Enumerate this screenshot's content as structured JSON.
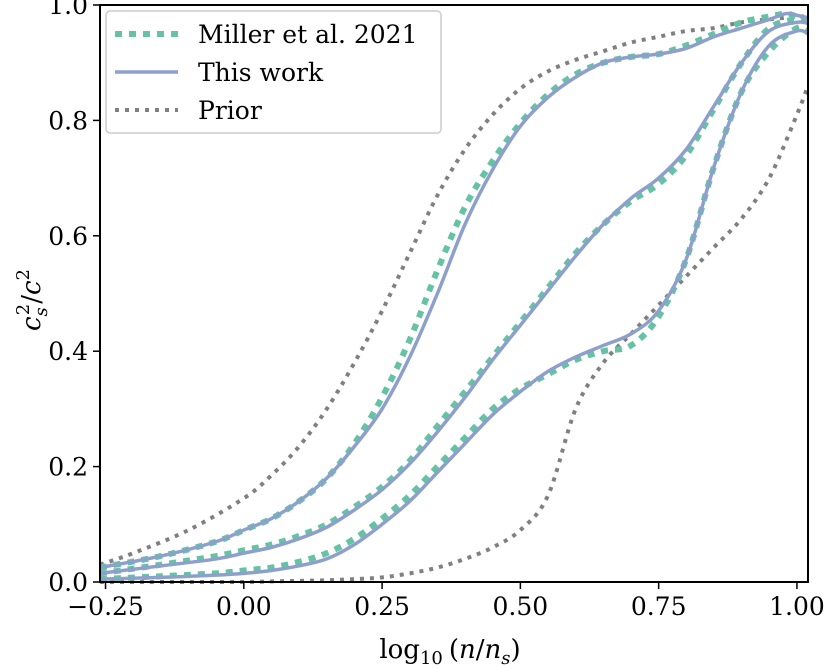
{
  "chart_data": {
    "type": "line",
    "title": "",
    "xlabel": "log10(n/ns)",
    "xlabel_parts": {
      "fn": "log",
      "sub": "10",
      "open": "(",
      "num": "n",
      "slash": "/",
      "den": "n",
      "den_sub": "s",
      "close": ")"
    },
    "ylabel": "cs^2/c^2",
    "ylabel_parts": {
      "a": "c",
      "a_sub": "s",
      "a_sup": "2",
      "slash": "/",
      "b": "c",
      "b_sup": "2"
    },
    "xlim": [
      -0.26,
      1.02
    ],
    "ylim": [
      0.0,
      1.0
    ],
    "x_ticks": [
      -0.25,
      0.0,
      0.25,
      0.5,
      0.75,
      1.0
    ],
    "x_tick_labels": [
      "−0.25",
      "0.00",
      "0.25",
      "0.50",
      "0.75",
      "1.00"
    ],
    "y_ticks": [
      0.0,
      0.2,
      0.4,
      0.6,
      0.8,
      1.0
    ],
    "y_tick_labels": [
      "0.0",
      "0.2",
      "0.4",
      "0.6",
      "0.8",
      "1.0"
    ],
    "legend": {
      "location": "top-left",
      "entries": [
        {
          "label": "Miller et al. 2021",
          "style": "dotted-thick",
          "color": "#66c2a5"
        },
        {
          "label": "This work",
          "style": "solid",
          "color": "#8da0cb"
        },
        {
          "label": "Prior",
          "style": "dotted",
          "color": "#808080"
        }
      ]
    },
    "colors": {
      "miller": "#66c2a5",
      "this_work": "#8da0cb",
      "prior": "#808080"
    },
    "series": [
      {
        "name": "Miller et al. 2021 (upper)",
        "style": "miller",
        "x": [
          -0.26,
          -0.15,
          -0.05,
          0.0,
          0.05,
          0.1,
          0.15,
          0.2,
          0.25,
          0.3,
          0.35,
          0.4,
          0.45,
          0.5,
          0.55,
          0.6,
          0.65,
          0.7,
          0.75,
          0.8,
          0.85,
          0.9,
          0.95,
          0.98,
          1.0,
          1.02
        ],
        "y": [
          0.025,
          0.045,
          0.07,
          0.09,
          0.11,
          0.14,
          0.18,
          0.24,
          0.32,
          0.42,
          0.54,
          0.65,
          0.73,
          0.795,
          0.845,
          0.88,
          0.9,
          0.91,
          0.915,
          0.93,
          0.95,
          0.97,
          0.98,
          0.985,
          0.98,
          0.975
        ]
      },
      {
        "name": "This work (upper)",
        "style": "this_work",
        "x": [
          -0.26,
          -0.15,
          -0.05,
          0.0,
          0.05,
          0.1,
          0.15,
          0.2,
          0.25,
          0.3,
          0.35,
          0.4,
          0.45,
          0.5,
          0.55,
          0.6,
          0.65,
          0.7,
          0.75,
          0.8,
          0.85,
          0.9,
          0.95,
          0.98,
          1.0,
          1.02
        ],
        "y": [
          0.025,
          0.045,
          0.07,
          0.09,
          0.11,
          0.14,
          0.18,
          0.235,
          0.3,
          0.39,
          0.5,
          0.62,
          0.715,
          0.79,
          0.84,
          0.875,
          0.9,
          0.91,
          0.915,
          0.925,
          0.945,
          0.96,
          0.975,
          0.985,
          0.982,
          0.978
        ]
      },
      {
        "name": "Miller et al. 2021 (middle)",
        "style": "miller",
        "x": [
          -0.26,
          -0.15,
          -0.05,
          0.0,
          0.05,
          0.1,
          0.15,
          0.2,
          0.25,
          0.3,
          0.35,
          0.4,
          0.45,
          0.5,
          0.55,
          0.6,
          0.65,
          0.7,
          0.75,
          0.8,
          0.85,
          0.9,
          0.95,
          1.0,
          1.02
        ],
        "y": [
          0.015,
          0.03,
          0.045,
          0.055,
          0.065,
          0.08,
          0.1,
          0.13,
          0.165,
          0.21,
          0.27,
          0.33,
          0.39,
          0.45,
          0.51,
          0.57,
          0.62,
          0.66,
          0.69,
          0.74,
          0.82,
          0.9,
          0.96,
          0.975,
          0.97
        ]
      },
      {
        "name": "This work (middle)",
        "style": "this_work",
        "x": [
          -0.26,
          -0.15,
          -0.05,
          0.0,
          0.05,
          0.1,
          0.15,
          0.2,
          0.25,
          0.3,
          0.35,
          0.4,
          0.45,
          0.5,
          0.55,
          0.6,
          0.65,
          0.7,
          0.75,
          0.8,
          0.85,
          0.9,
          0.95,
          1.0,
          1.02
        ],
        "y": [
          0.015,
          0.028,
          0.04,
          0.05,
          0.06,
          0.075,
          0.095,
          0.125,
          0.16,
          0.205,
          0.26,
          0.32,
          0.385,
          0.445,
          0.505,
          0.565,
          0.62,
          0.665,
          0.7,
          0.75,
          0.825,
          0.9,
          0.955,
          0.97,
          0.968
        ]
      },
      {
        "name": "Miller et al. 2021 (lower)",
        "style": "miller",
        "x": [
          -0.26,
          -0.15,
          -0.05,
          0.0,
          0.05,
          0.1,
          0.15,
          0.2,
          0.25,
          0.3,
          0.35,
          0.4,
          0.45,
          0.5,
          0.55,
          0.6,
          0.65,
          0.7,
          0.75,
          0.8,
          0.85,
          0.9,
          0.95,
          1.0,
          1.02
        ],
        "y": [
          0.005,
          0.01,
          0.015,
          0.02,
          0.025,
          0.035,
          0.05,
          0.075,
          0.11,
          0.15,
          0.2,
          0.25,
          0.3,
          0.335,
          0.36,
          0.385,
          0.4,
          0.41,
          0.46,
          0.56,
          0.72,
          0.85,
          0.92,
          0.96,
          0.955
        ]
      },
      {
        "name": "This work (lower)",
        "style": "this_work",
        "x": [
          -0.26,
          -0.15,
          -0.05,
          0.0,
          0.05,
          0.1,
          0.15,
          0.2,
          0.25,
          0.3,
          0.35,
          0.4,
          0.45,
          0.5,
          0.55,
          0.6,
          0.65,
          0.7,
          0.75,
          0.8,
          0.85,
          0.9,
          0.95,
          1.0,
          1.02
        ],
        "y": [
          0.005,
          0.008,
          0.012,
          0.015,
          0.02,
          0.028,
          0.04,
          0.065,
          0.1,
          0.14,
          0.19,
          0.24,
          0.29,
          0.33,
          0.365,
          0.39,
          0.41,
          0.43,
          0.47,
          0.56,
          0.72,
          0.85,
          0.93,
          0.955,
          0.95
        ]
      },
      {
        "name": "Prior (upper)",
        "style": "prior",
        "x": [
          -0.26,
          -0.2,
          -0.1,
          0.0,
          0.05,
          0.1,
          0.15,
          0.2,
          0.25,
          0.3,
          0.35,
          0.4,
          0.45,
          0.5,
          0.55,
          0.6,
          0.65,
          0.7,
          0.75,
          0.8,
          0.85,
          0.9,
          0.95,
          1.0,
          1.02
        ],
        "y": [
          0.03,
          0.05,
          0.09,
          0.145,
          0.185,
          0.235,
          0.3,
          0.38,
          0.47,
          0.57,
          0.67,
          0.75,
          0.81,
          0.855,
          0.885,
          0.905,
          0.92,
          0.935,
          0.945,
          0.955,
          0.96,
          0.97,
          0.975,
          0.98,
          0.98
        ]
      },
      {
        "name": "Prior (lower)",
        "style": "prior",
        "x": [
          -0.26,
          -0.2,
          -0.1,
          0.0,
          0.05,
          0.1,
          0.15,
          0.2,
          0.25,
          0.3,
          0.35,
          0.4,
          0.45,
          0.5,
          0.55,
          0.6,
          0.65,
          0.7,
          0.75,
          0.8,
          0.85,
          0.9,
          0.95,
          1.0,
          1.02
        ],
        "y": [
          0.0,
          0.0,
          0.0,
          0.0,
          0.001,
          0.002,
          0.003,
          0.005,
          0.008,
          0.015,
          0.025,
          0.04,
          0.06,
          0.09,
          0.15,
          0.3,
          0.38,
          0.43,
          0.48,
          0.53,
          0.58,
          0.63,
          0.7,
          0.81,
          0.86
        ]
      }
    ]
  }
}
